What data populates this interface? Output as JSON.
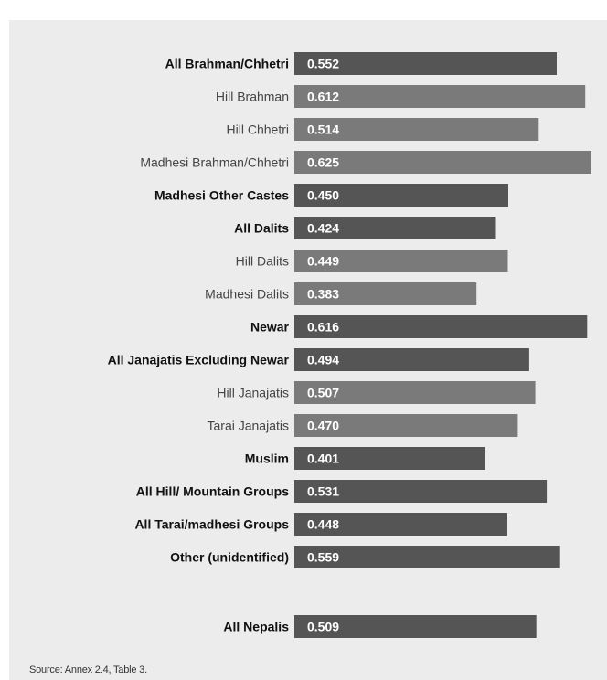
{
  "chart_data": {
    "type": "bar",
    "orientation": "horizontal",
    "title": "",
    "xlabel": "",
    "ylabel": "",
    "xlim": [
      0,
      0.63
    ],
    "grid": false,
    "legend": "none",
    "colors": {
      "dark": "#555555",
      "medium": "#7a7a7a",
      "panel": "#ececec"
    },
    "bars": [
      {
        "label": "All Brahman/Chhetri",
        "value": 0.552,
        "display": "0.552",
        "bold": true,
        "shade": "dark"
      },
      {
        "label": "Hill Brahman",
        "value": 0.612,
        "display": "0.612",
        "bold": false,
        "shade": "medium"
      },
      {
        "label": "Hill Chhetri",
        "value": 0.514,
        "display": "0.514",
        "bold": false,
        "shade": "medium"
      },
      {
        "label": "Madhesi Brahman/Chhetri",
        "value": 0.625,
        "display": "0.625",
        "bold": false,
        "shade": "medium"
      },
      {
        "label": "Madhesi Other Castes",
        "value": 0.45,
        "display": "0.450",
        "bold": true,
        "shade": "dark"
      },
      {
        "label": "All Dalits",
        "value": 0.424,
        "display": "0.424",
        "bold": true,
        "shade": "dark"
      },
      {
        "label": "Hill Dalits",
        "value": 0.449,
        "display": "0.449",
        "bold": false,
        "shade": "medium"
      },
      {
        "label": "Madhesi Dalits",
        "value": 0.383,
        "display": "0.383",
        "bold": false,
        "shade": "medium"
      },
      {
        "label": "Newar",
        "value": 0.616,
        "display": "0.616",
        "bold": true,
        "shade": "dark"
      },
      {
        "label": "All Janajatis Excluding Newar",
        "value": 0.494,
        "display": "0.494",
        "bold": true,
        "shade": "dark"
      },
      {
        "label": "Hill Janajatis",
        "value": 0.507,
        "display": "0.507",
        "bold": false,
        "shade": "medium"
      },
      {
        "label": "Tarai Janajatis",
        "value": 0.47,
        "display": "0.470",
        "bold": false,
        "shade": "medium"
      },
      {
        "label": "Muslim",
        "value": 0.401,
        "display": "0.401",
        "bold": true,
        "shade": "dark"
      },
      {
        "label": "All Hill/ Mountain Groups",
        "value": 0.531,
        "display": "0.531",
        "bold": true,
        "shade": "dark"
      },
      {
        "label": "All Tarai/madhesi Groups",
        "value": 0.448,
        "display": "0.448",
        "bold": true,
        "shade": "dark"
      },
      {
        "label": "Other (unidentified)",
        "value": 0.559,
        "display": "0.559",
        "bold": true,
        "shade": "dark"
      },
      {
        "label": "All Nepalis",
        "value": 0.509,
        "display": "0.509",
        "bold": true,
        "shade": "dark",
        "separated": true
      }
    ]
  },
  "source_note": "Source: Annex 2.4, Table 3."
}
